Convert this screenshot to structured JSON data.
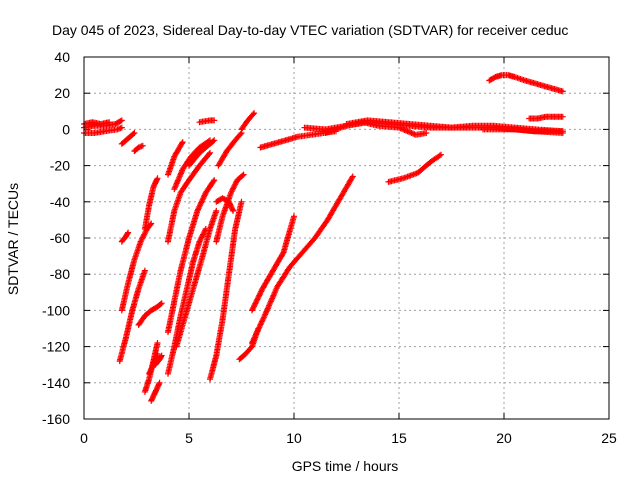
{
  "chart_data": {
    "type": "scatter",
    "title": "Day 045 of 2023, Sidereal Day-to-day VTEC variation (SDTVAR) for receiver ceduc",
    "xlabel": "GPS time / hours",
    "ylabel": "SDTVAR / TECUs",
    "xlim": [
      0,
      25
    ],
    "ylim": [
      -160,
      40
    ],
    "xticks": [
      0,
      5,
      10,
      15,
      20,
      25
    ],
    "yticks": [
      -160,
      -140,
      -120,
      -100,
      -80,
      -60,
      -40,
      -20,
      0,
      20,
      40
    ],
    "grid": true,
    "marker": "plus",
    "color": "#ff0000",
    "segments": [
      {
        "x": [
          0.0,
          0.5,
          1.0,
          1.5,
          1.8
        ],
        "y": [
          1,
          2,
          2,
          3,
          5
        ]
      },
      {
        "x": [
          0.0,
          0.5,
          1.0,
          1.6,
          1.8
        ],
        "y": [
          -2,
          -2,
          -1,
          0,
          1
        ]
      },
      {
        "x": [
          0.0,
          0.4,
          0.8,
          1.2
        ],
        "y": [
          3,
          4,
          3,
          4
        ]
      },
      {
        "x": [
          1.8,
          2.1,
          2.4
        ],
        "y": [
          -8,
          -5,
          -2
        ]
      },
      {
        "x": [
          1.7,
          2.0,
          2.3,
          2.6,
          2.9
        ],
        "y": [
          -128,
          -115,
          -100,
          -88,
          -78
        ]
      },
      {
        "x": [
          1.8,
          2.1,
          2.4,
          2.7,
          3.0,
          3.2
        ],
        "y": [
          -100,
          -85,
          -72,
          -62,
          -55,
          -52
        ]
      },
      {
        "x": [
          1.8,
          2.0,
          2.1
        ],
        "y": [
          -62,
          -59,
          -57
        ]
      },
      {
        "x": [
          2.4,
          2.6,
          2.8
        ],
        "y": [
          -12,
          -10,
          -9
        ]
      },
      {
        "x": [
          2.6,
          2.9,
          3.2,
          3.5,
          3.7
        ],
        "y": [
          -108,
          -103,
          -100,
          -98,
          -96
        ]
      },
      {
        "x": [
          2.9,
          3.1,
          3.3,
          3.5
        ],
        "y": [
          -55,
          -42,
          -32,
          -27
        ]
      },
      {
        "x": [
          2.9,
          3.1,
          3.3,
          3.5
        ],
        "y": [
          -145,
          -138,
          -128,
          -118
        ]
      },
      {
        "x": [
          3.1,
          3.3,
          3.5
        ],
        "y": [
          -135,
          -130,
          -124
        ]
      },
      {
        "x": [
          3.2,
          3.4,
          3.6
        ],
        "y": [
          -150,
          -145,
          -140
        ]
      },
      {
        "x": [
          3.4,
          3.6,
          3.7
        ],
        "y": [
          -130,
          -127,
          -125
        ]
      },
      {
        "x": [
          4.0,
          4.3,
          4.6,
          5.0,
          5.4,
          5.8,
          6.2
        ],
        "y": [
          -112,
          -95,
          -78,
          -60,
          -45,
          -35,
          -28
        ]
      },
      {
        "x": [
          4.0,
          4.3,
          4.6,
          5.0,
          5.5,
          6.0
        ],
        "y": [
          -62,
          -45,
          -35,
          -28,
          -20,
          -13
        ]
      },
      {
        "x": [
          4.0,
          4.3,
          4.7
        ],
        "y": [
          -25,
          -15,
          -7
        ]
      },
      {
        "x": [
          4.3,
          4.7,
          5.1,
          5.5,
          6.0
        ],
        "y": [
          -33,
          -22,
          -15,
          -10,
          -6
        ]
      },
      {
        "x": [
          4.0,
          4.3,
          4.6,
          4.9,
          5.2,
          5.5,
          5.8
        ],
        "y": [
          -135,
          -120,
          -103,
          -88,
          -73,
          -62,
          -55
        ]
      },
      {
        "x": [
          4.4,
          4.8,
          5.2,
          5.6,
          6.0,
          6.3
        ],
        "y": [
          -120,
          -104,
          -88,
          -72,
          -55,
          -45
        ]
      },
      {
        "x": [
          5.0,
          5.5,
          6.0,
          6.2
        ],
        "y": [
          -20,
          -13,
          -8,
          -6
        ]
      },
      {
        "x": [
          5.5,
          6.0,
          6.2
        ],
        "y": [
          4,
          5,
          5
        ]
      },
      {
        "x": [
          6.0,
          6.3,
          6.6,
          6.9,
          7.2,
          7.5
        ],
        "y": [
          -138,
          -125,
          -105,
          -80,
          -55,
          -40
        ]
      },
      {
        "x": [
          6.3,
          6.6,
          7.0,
          7.3,
          7.6
        ],
        "y": [
          -62,
          -48,
          -35,
          -28,
          -25
        ]
      },
      {
        "x": [
          6.3,
          6.6,
          6.9,
          7.1
        ],
        "y": [
          -40,
          -38,
          -40,
          -45
        ]
      },
      {
        "x": [
          6.4,
          6.8,
          7.2,
          7.5
        ],
        "y": [
          -20,
          -12,
          -6,
          -2
        ]
      },
      {
        "x": [
          7.5,
          7.8,
          8.1
        ],
        "y": [
          0,
          5,
          9
        ]
      },
      {
        "x": [
          7.4,
          7.7,
          8.0,
          8.3
        ],
        "y": [
          -127,
          -124,
          -120,
          -110
        ]
      },
      {
        "x": [
          8.0,
          8.5,
          9.0,
          9.5,
          10.0
        ],
        "y": [
          -100,
          -88,
          -78,
          -68,
          -48
        ]
      },
      {
        "x": [
          8.0,
          8.6,
          9.2,
          9.8,
          10.4,
          11.0,
          11.6,
          12.2,
          12.8
        ],
        "y": [
          -118,
          -103,
          -87,
          -76,
          -68,
          -60,
          -50,
          -38,
          -26
        ]
      },
      {
        "x": [
          8.4,
          9.0,
          9.6,
          10.2,
          10.8,
          11.4,
          12.0
        ],
        "y": [
          -10,
          -8,
          -6,
          -4,
          -3,
          -2,
          -1
        ]
      },
      {
        "x": [
          10.5,
          11.5,
          12.5,
          13.5,
          14.5,
          15.5,
          16.5,
          17.5,
          18.5,
          19.5,
          20.5,
          21.5,
          22.8
        ],
        "y": [
          1,
          0,
          2,
          4,
          3,
          2,
          1,
          1,
          2,
          2,
          1,
          0,
          -1
        ]
      },
      {
        "x": [
          11.5,
          12.5,
          13.3,
          14.0,
          15.0,
          15.8,
          16.3
        ],
        "y": [
          -2,
          2,
          4,
          2,
          1,
          -3,
          -2
        ]
      },
      {
        "x": [
          12.5,
          13.5,
          14.5,
          15.5,
          16.5,
          17.5,
          18.5,
          19.5,
          20.5,
          21.5,
          22.8
        ],
        "y": [
          3,
          5,
          4,
          3,
          2,
          1,
          1,
          1,
          0,
          -1,
          -2
        ]
      },
      {
        "x": [
          14.5,
          15.2,
          15.9,
          16.5,
          17.0
        ],
        "y": [
          -29,
          -27,
          -24,
          -18,
          -14
        ]
      },
      {
        "x": [
          19.3,
          19.6,
          19.9,
          20.2,
          20.5,
          21.0,
          21.6,
          22.2,
          22.8
        ],
        "y": [
          27,
          29,
          30,
          30,
          29,
          27,
          25,
          23,
          21
        ]
      },
      {
        "x": [
          21.2,
          21.6,
          22.0,
          22.4,
          22.8
        ],
        "y": [
          6,
          6,
          7,
          7,
          7
        ]
      },
      {
        "x": [
          19.0,
          19.8,
          20.6,
          21.4,
          22.2,
          22.8
        ],
        "y": [
          0,
          0,
          0,
          -1,
          -1,
          -1
        ]
      }
    ]
  }
}
